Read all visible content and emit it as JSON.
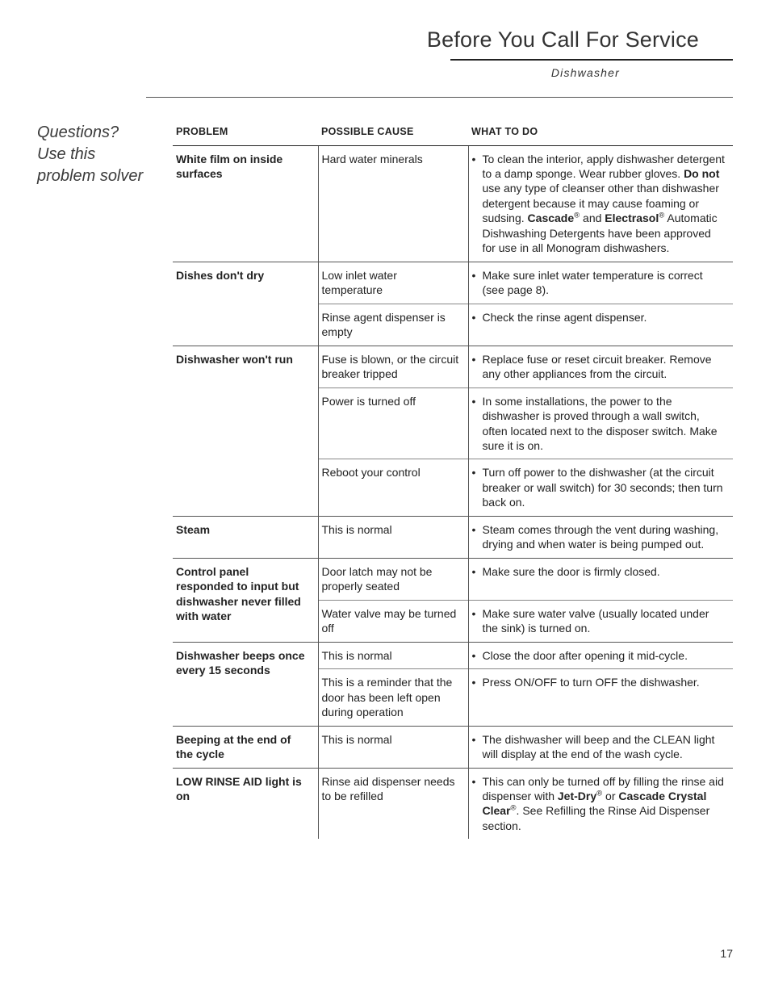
{
  "header": {
    "title": "Before You Call For Service",
    "subtitle": "Dishwasher"
  },
  "sidebar": {
    "text": "Questions? Use this problem solver"
  },
  "columns": {
    "problem": "PROBLEM",
    "cause": "POSSIBLE CAUSE",
    "todo": "WHAT TO DO"
  },
  "page_number": "17",
  "groups": [
    {
      "problem": "White film on inside surfaces",
      "rows": [
        {
          "cause": "Hard water minerals",
          "todo_html": "To clean the interior, apply dishwasher detergent to a damp sponge. Wear rubber gloves. <span class=\"b\">Do not</span> use any type of cleanser other than dishwasher detergent because it may cause foaming or sudsing. <span class=\"b\">Cascade</span><sup>®</sup> and <span class=\"b\">Electrasol</span><sup>®</sup> Automatic Dishwashing Detergents have been approved for use in all Monogram dishwashers."
        }
      ]
    },
    {
      "problem": "Dishes don't dry",
      "rows": [
        {
          "cause": "Low inlet water temperature",
          "todo_html": "Make sure inlet water temperature is correct (see page 8)."
        },
        {
          "cause": "Rinse agent dispenser is empty",
          "todo_html": "Check the rinse agent dispenser."
        }
      ]
    },
    {
      "problem": "Dishwasher won't run",
      "rows": [
        {
          "cause": "Fuse is blown, or the circuit breaker tripped",
          "todo_html": "Replace fuse or reset circuit breaker. Remove any other appliances from the&nbsp;circuit."
        },
        {
          "cause": "Power is turned off",
          "todo_html": "In some installations, the power to the dishwasher is proved through a wall switch, often located next to the disposer switch. Make sure it is on."
        },
        {
          "cause": "Reboot your control",
          "todo_html": "Turn off power to the dishwasher (at the circuit breaker or wall switch) for 30&nbsp;seconds; then turn back on."
        }
      ]
    },
    {
      "problem": "Steam",
      "rows": [
        {
          "cause": "This is normal",
          "todo_html": "Steam comes through the vent during washing, drying and when water is being pumped out."
        }
      ]
    },
    {
      "problem": "Control panel responded to input but dishwasher never filled with water",
      "rows": [
        {
          "cause": "Door latch may not be properly seated",
          "todo_html": "Make sure the door is firmly closed."
        },
        {
          "cause": "Water valve may be turned off",
          "todo_html": "Make sure water valve (usually located under the sink) is turned on."
        }
      ]
    },
    {
      "problem": "Dishwasher beeps once every 15 seconds",
      "rows": [
        {
          "cause": "This is normal",
          "todo_html": "Close the door after opening it mid-cycle."
        },
        {
          "cause": "This is a reminder that the door has been left open during operation",
          "todo_html": "Press ON/OFF to turn OFF the dishwasher."
        }
      ]
    },
    {
      "problem": "Beeping at the end of the cycle",
      "rows": [
        {
          "cause": "This is normal",
          "todo_html": "The dishwasher will beep and the CLEAN light will display at the end of the wash cycle."
        }
      ]
    },
    {
      "problem": "LOW RINSE AID light is on",
      "rows": [
        {
          "cause": "Rinse aid dispenser needs to be refilled",
          "todo_html": "This can only be turned off by filling the rinse aid dispenser with <span class=\"b\">Jet-Dry</span><sup>®</sup> or <span class=\"b\">Cascade Crystal Clear</span><sup>®</sup>. See Refilling the Rinse Aid Dispenser section."
        }
      ]
    }
  ]
}
